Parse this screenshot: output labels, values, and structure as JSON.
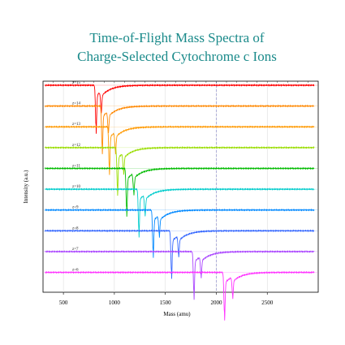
{
  "chart_data": {
    "type": "line",
    "title_lines": [
      "Time-of-Flight Mass Spectra of",
      "Charge-Selected Cytochrome c Ions"
    ],
    "xlabel": "Mass (amu)",
    "ylabel": "Intensity (a.u.)",
    "xlim": [
      300,
      3000
    ],
    "x_ticks": [
      500,
      1000,
      1500,
      2000,
      2500
    ],
    "reference_line_x": 2000,
    "grid": true,
    "series": [
      {
        "name": "z=15",
        "color": "#ff0000",
        "peaks": [
          {
            "x": 820,
            "depth": 1.0
          },
          {
            "x": 870,
            "depth": 0.45
          }
        ]
      },
      {
        "name": "z=14",
        "color": "#ff8800",
        "peaks": [
          {
            "x": 880,
            "depth": 1.0
          },
          {
            "x": 940,
            "depth": 0.45
          }
        ]
      },
      {
        "name": "z=13",
        "color": "#ff9900",
        "peaks": [
          {
            "x": 950,
            "depth": 1.0
          },
          {
            "x": 1010,
            "depth": 0.45
          }
        ]
      },
      {
        "name": "z=12",
        "color": "#99dd00",
        "peaks": [
          {
            "x": 1030,
            "depth": 1.0
          },
          {
            "x": 1090,
            "depth": 0.45
          }
        ]
      },
      {
        "name": "z=11",
        "color": "#00bb00",
        "peaks": [
          {
            "x": 1120,
            "depth": 1.0
          },
          {
            "x": 1190,
            "depth": 0.45
          }
        ]
      },
      {
        "name": "z=10",
        "color": "#00cccc",
        "peaks": [
          {
            "x": 1240,
            "depth": 1.0
          },
          {
            "x": 1300,
            "depth": 0.45
          }
        ]
      },
      {
        "name": "z=9",
        "color": "#0088ff",
        "peaks": [
          {
            "x": 1380,
            "depth": 1.0
          },
          {
            "x": 1440,
            "depth": 0.45
          }
        ]
      },
      {
        "name": "z=8",
        "color": "#3366ff",
        "peaks": [
          {
            "x": 1560,
            "depth": 1.0
          },
          {
            "x": 1630,
            "depth": 0.45
          }
        ]
      },
      {
        "name": "z=7",
        "color": "#aa44ff",
        "peaks": [
          {
            "x": 1780,
            "depth": 1.0
          },
          {
            "x": 1850,
            "depth": 0.45
          }
        ]
      },
      {
        "name": "z=6",
        "color": "#ff33ff",
        "peaks": [
          {
            "x": 2080,
            "depth": 1.0
          },
          {
            "x": 2160,
            "depth": 0.45
          }
        ]
      }
    ]
  }
}
